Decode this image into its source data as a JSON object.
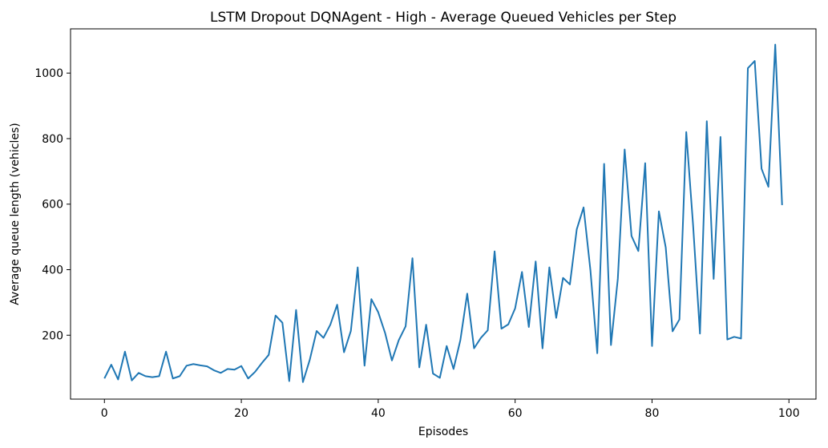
{
  "chart_data": {
    "type": "line",
    "title": "LSTM Dropout DQNAgent - High - Average Queued Vehicles per Step",
    "xlabel": "Episodes",
    "ylabel": "Average queue length (vehicles)",
    "xlim": [
      -4.95,
      103.95
    ],
    "ylim": [
      5,
      1135
    ],
    "xticks": [
      0,
      20,
      40,
      60,
      80,
      100
    ],
    "yticks": [
      200,
      400,
      600,
      800,
      1000
    ],
    "grid": false,
    "line_color": "#1f77b4",
    "series": [
      {
        "x": [
          0,
          1,
          2,
          3,
          4,
          5,
          6,
          7,
          8,
          9,
          10,
          11,
          12,
          13,
          14,
          15,
          16,
          17,
          18,
          19,
          20,
          21,
          22,
          23,
          24,
          25,
          26,
          27,
          28,
          29,
          30,
          31,
          32,
          33,
          34,
          35,
          36,
          37,
          38,
          39,
          40,
          41,
          42,
          43,
          44,
          45,
          46,
          47,
          48,
          49,
          50,
          51,
          52,
          53,
          54,
          55,
          56,
          57,
          58,
          59,
          60,
          61,
          62,
          63,
          64,
          65,
          66,
          67,
          68,
          69,
          70,
          71,
          72,
          73,
          74,
          75,
          76,
          77,
          78,
          79,
          80,
          81,
          82,
          83,
          84,
          85,
          86,
          87,
          88,
          89,
          90,
          91,
          92,
          93,
          94,
          95,
          96,
          97,
          98,
          99
        ],
        "values": [
          68,
          110,
          65,
          150,
          62,
          85,
          75,
          72,
          75,
          150,
          68,
          75,
          107,
          112,
          108,
          105,
          93,
          85,
          97,
          95,
          106,
          68,
          88,
          115,
          140,
          260,
          238,
          60,
          277,
          57,
          125,
          213,
          192,
          232,
          293,
          148,
          213,
          407,
          107,
          310,
          270,
          207,
          123,
          185,
          227,
          435,
          102,
          232,
          83,
          70,
          167,
          97,
          185,
          327,
          160,
          192,
          215,
          456,
          220,
          233,
          282,
          393,
          225,
          425,
          160,
          407,
          253,
          375,
          355,
          523,
          590,
          398,
          145,
          723,
          170,
          372,
          767,
          503,
          457,
          725,
          167,
          578,
          468,
          212,
          248,
          820,
          535,
          205,
          853,
          372,
          805,
          187,
          195,
          190,
          1015,
          1037,
          708,
          653,
          1087,
          597
        ]
      }
    ]
  }
}
